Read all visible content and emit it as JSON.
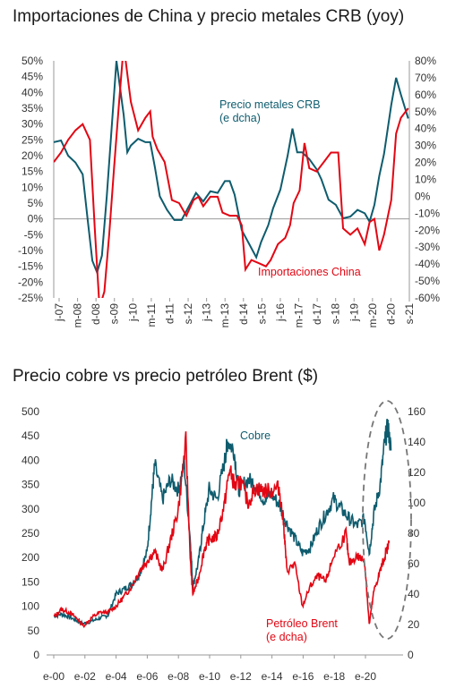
{
  "chart_data": [
    {
      "type": "line",
      "title": "Importaciones de China y precio metales CRB (yoy)",
      "xlabel": "",
      "ylabel": "",
      "x_ticks": [
        "j-07",
        "m-08",
        "d-08",
        "s-09",
        "j-10",
        "m-11",
        "d-11",
        "s-12",
        "j-13",
        "m-13",
        "d-14",
        "s-15",
        "j-16",
        "m-17",
        "d-17",
        "s-18",
        "j-19",
        "m-20",
        "d-20",
        "s-21"
      ],
      "y_left": {
        "ticks": [
          "50%",
          "45%",
          "40%",
          "35%",
          "30%",
          "25%",
          "20%",
          "15%",
          "10%",
          "5%",
          "0%",
          "-5%",
          "-10%",
          "-15%",
          "-20%",
          "-25%"
        ],
        "range": [
          -25,
          50
        ]
      },
      "y_right": {
        "ticks": [
          "80%",
          "70%",
          "60%",
          "50%",
          "40%",
          "30%",
          "20%",
          "10%",
          "0%",
          "-10%",
          "-20%",
          "-30%",
          "-40%",
          "-50%",
          "-60%"
        ],
        "range": [
          -60,
          80
        ]
      },
      "grid": false,
      "series": [
        {
          "name": "Importaciones China",
          "label_lines": [
            "Importaciones China"
          ],
          "color": "#e30613",
          "axis": "left",
          "x": [
            2007.0,
            2007.3,
            2007.6,
            2007.9,
            2008.2,
            2008.5,
            2008.7,
            2008.9,
            2009.1,
            2009.3,
            2009.5,
            2009.7,
            2009.9,
            2010.1,
            2010.2,
            2010.5,
            2010.8,
            2011.0,
            2011.1,
            2011.3,
            2011.6,
            2011.9,
            2012.2,
            2012.5,
            2012.8,
            2013.0,
            2013.2,
            2013.5,
            2013.8,
            2014.0,
            2014.3,
            2014.6,
            2014.8,
            2014.95,
            2015.2,
            2015.5,
            2015.8,
            2016.0,
            2016.3,
            2016.6,
            2016.8,
            2016.95,
            2017.2,
            2017.4,
            2017.6,
            2017.9,
            2018.2,
            2018.5,
            2018.8,
            2019.0,
            2019.3,
            2019.6,
            2019.9,
            2020.1,
            2020.3,
            2020.5,
            2020.7,
            2021.0,
            2021.2,
            2021.4,
            2021.7
          ],
          "values": [
            18,
            21,
            25,
            28,
            30,
            25,
            -3,
            -28,
            -23,
            -5,
            16,
            36,
            55,
            43,
            37,
            28,
            32,
            34,
            26,
            22,
            18,
            6,
            5,
            1,
            6,
            7,
            4,
            7,
            7,
            2,
            1,
            1,
            -2,
            -16,
            -13,
            -14,
            -15,
            -13,
            -8,
            -6,
            -2,
            5,
            9,
            24,
            16,
            15,
            18,
            21,
            21,
            -3,
            -5,
            -3,
            -8,
            -1,
            0,
            -10,
            -5,
            6,
            27,
            32,
            35
          ]
        },
        {
          "name": "Precio metales CRB",
          "label_lines": [
            "Precio metales CRB",
            "(e dcha)"
          ],
          "color": "#0e5c6e",
          "axis": "right",
          "x": [
            2007.0,
            2007.3,
            2007.6,
            2007.9,
            2008.2,
            2008.4,
            2008.6,
            2008.8,
            2009.0,
            2009.2,
            2009.4,
            2009.6,
            2009.9,
            2010.05,
            2010.2,
            2010.5,
            2010.8,
            2011.0,
            2011.2,
            2011.4,
            2011.7,
            2012.0,
            2012.3,
            2012.6,
            2012.9,
            2013.2,
            2013.5,
            2013.8,
            2014.1,
            2014.3,
            2014.5,
            2014.8,
            2015.1,
            2015.4,
            2015.6,
            2015.9,
            2016.1,
            2016.4,
            2016.7,
            2016.9,
            2017.1,
            2017.3,
            2017.6,
            2017.9,
            2018.1,
            2018.4,
            2018.7,
            2019.0,
            2019.3,
            2019.6,
            2019.9,
            2020.1,
            2020.3,
            2020.5,
            2020.7,
            2021.0,
            2021.2,
            2021.4,
            2021.7
          ],
          "values": [
            32,
            33,
            24,
            20,
            13,
            -13,
            -38,
            -45,
            -35,
            0,
            40,
            80,
            48,
            26,
            30,
            34,
            32,
            32,
            17,
            0,
            -8,
            -14,
            -14,
            -6,
            2,
            -3,
            3,
            2,
            9,
            9,
            1,
            -20,
            -28,
            -36,
            -27,
            -17,
            -7,
            4,
            24,
            40,
            26,
            26,
            22,
            16,
            10,
            -2,
            -5,
            -13,
            -12,
            -8,
            -10,
            -15,
            -5,
            12,
            25,
            54,
            70,
            60,
            46
          ]
        }
      ]
    },
    {
      "type": "line",
      "title": "Precio cobre vs precio petróleo Brent ($)",
      "xlabel": "",
      "ylabel": "",
      "x_ticks": [
        "e-00",
        "e-02",
        "e-04",
        "e-06",
        "e-08",
        "e-10",
        "e-12",
        "e-14",
        "e-16",
        "e-18",
        "e-20"
      ],
      "y_left": {
        "ticks": [
          "500",
          "450",
          "400",
          "350",
          "300",
          "250",
          "200",
          "150",
          "100",
          "50",
          "0"
        ],
        "range": [
          0,
          500
        ]
      },
      "y_right": {
        "ticks": [
          "160",
          "140",
          "120",
          "100",
          "80",
          "60",
          "40",
          "20",
          "0"
        ],
        "range": [
          0,
          160
        ]
      },
      "grid": false,
      "annotation": "dashed ellipse highlighting 2020-2021",
      "series": [
        {
          "name": "Cobre",
          "label_lines": [
            "Cobre"
          ],
          "color": "#0e5c6e",
          "axis": "left",
          "x": [
            2000.0,
            2000.5,
            2001.0,
            2001.5,
            2001.9,
            2002.5,
            2003.0,
            2003.5,
            2004.0,
            2004.5,
            2005.0,
            2005.5,
            2006.0,
            2006.3,
            2006.5,
            2007.0,
            2007.5,
            2008.0,
            2008.4,
            2008.8,
            2008.95,
            2009.3,
            2009.6,
            2010.0,
            2010.5,
            2011.0,
            2011.2,
            2011.6,
            2011.9,
            2012.5,
            2013.0,
            2013.5,
            2014.0,
            2014.5,
            2015.0,
            2015.5,
            2016.0,
            2016.5,
            2017.0,
            2017.5,
            2018.0,
            2018.5,
            2019.0,
            2019.5,
            2020.0,
            2020.3,
            2020.6,
            2021.0,
            2021.3,
            2021.5,
            2021.7
          ],
          "values": [
            80,
            84,
            78,
            70,
            64,
            70,
            76,
            82,
            125,
            135,
            145,
            165,
            210,
            320,
            390,
            320,
            360,
            340,
            390,
            230,
            140,
            190,
            260,
            340,
            320,
            400,
            440,
            420,
            340,
            360,
            350,
            320,
            330,
            310,
            270,
            240,
            210,
            220,
            260,
            290,
            320,
            300,
            280,
            265,
            280,
            210,
            290,
            350,
            440,
            470,
            420
          ]
        },
        {
          "name": "Petróleo Brent",
          "label_lines": [
            "Petróleo Brent",
            "(e dcha)"
          ],
          "color": "#e30613",
          "axis": "right",
          "x": [
            2000.0,
            2000.5,
            2001.0,
            2001.5,
            2001.9,
            2002.5,
            2003.0,
            2003.5,
            2004.0,
            2004.5,
            2005.0,
            2005.5,
            2006.0,
            2006.5,
            2007.0,
            2007.5,
            2008.0,
            2008.5,
            2008.8,
            2008.95,
            2009.3,
            2009.7,
            2010.0,
            2010.5,
            2011.0,
            2011.3,
            2011.7,
            2012.0,
            2012.5,
            2013.0,
            2013.5,
            2014.0,
            2014.5,
            2014.8,
            2015.0,
            2015.5,
            2016.0,
            2016.5,
            2017.0,
            2017.5,
            2018.0,
            2018.8,
            2019.0,
            2019.5,
            2020.0,
            2020.3,
            2020.6,
            2021.0,
            2021.3,
            2021.6
          ],
          "values": [
            25,
            30,
            28,
            24,
            19,
            25,
            28,
            28,
            32,
            38,
            45,
            55,
            62,
            68,
            55,
            75,
            95,
            140,
            60,
            40,
            50,
            70,
            76,
            78,
            100,
            122,
            110,
            115,
            100,
            110,
            108,
            108,
            110,
            85,
            55,
            60,
            32,
            45,
            52,
            48,
            65,
            80,
            60,
            65,
            62,
            20,
            42,
            55,
            65,
            74
          ]
        }
      ]
    }
  ]
}
